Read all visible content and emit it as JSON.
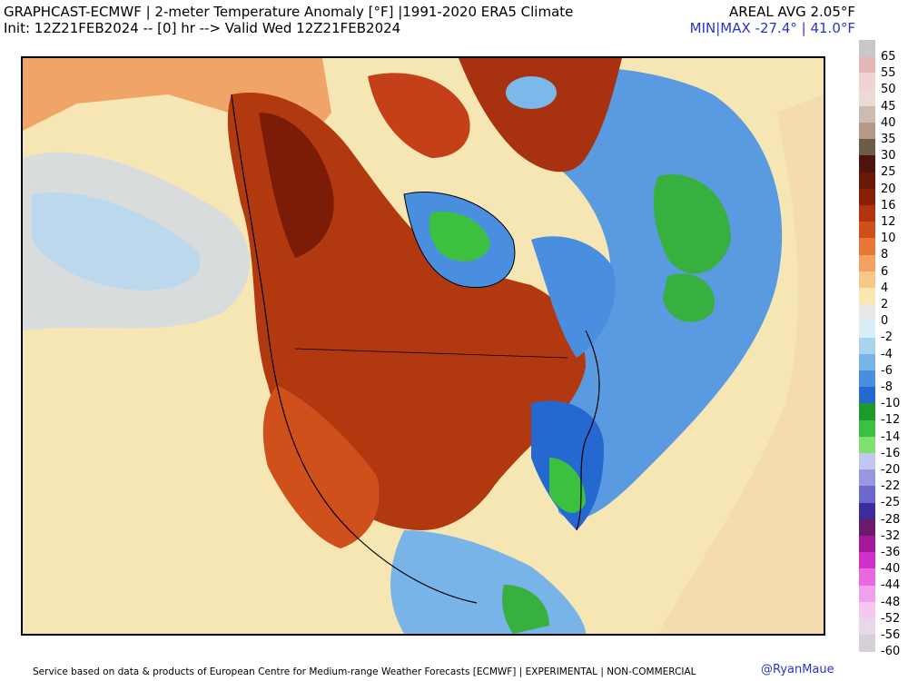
{
  "header": {
    "title_line1": "GRAPHCAST-ECMWF | 2-meter Temperature Anomaly [°F] |1991-2020 ERA5 Climate",
    "title_line2": "Init: 12Z21FEB2024 -- [0] hr --> Valid Wed 12Z21FEB2024",
    "areal_avg": "AREAL AVG 2.05°F",
    "min_max": "MIN|MAX -27.4° | 41.0°F"
  },
  "colorbar": {
    "entries": [
      {
        "label": "65",
        "color": "#c8c8c8"
      },
      {
        "label": "55",
        "color": "#e4b8b8"
      },
      {
        "label": "50",
        "color": "#f2d2d2"
      },
      {
        "label": "45",
        "color": "#eadcd4"
      },
      {
        "label": "40",
        "color": "#ccbcb0"
      },
      {
        "label": "35",
        "color": "#b49a88"
      },
      {
        "label": "30",
        "color": "#6e5c4a"
      },
      {
        "label": "25",
        "color": "#4e1410"
      },
      {
        "label": "20",
        "color": "#6a1808"
      },
      {
        "label": "16",
        "color": "#8a2008"
      },
      {
        "label": "12",
        "color": "#b03410"
      },
      {
        "label": "10",
        "color": "#d0501c"
      },
      {
        "label": "8",
        "color": "#e87838"
      },
      {
        "label": "6",
        "color": "#f4a060"
      },
      {
        "label": "4",
        "color": "#f8c888"
      },
      {
        "label": "2",
        "color": "#fae8b0"
      },
      {
        "label": "0",
        "color": "#e8e8e8"
      },
      {
        "label": "-2",
        "color": "#d8eef8"
      },
      {
        "label": "-4",
        "color": "#a8d4f0"
      },
      {
        "label": "-6",
        "color": "#78b4e8"
      },
      {
        "label": "-8",
        "color": "#4a8ee0"
      },
      {
        "label": "-10",
        "color": "#2468d0"
      },
      {
        "label": "-12",
        "color": "#1c9a2c"
      },
      {
        "label": "-14",
        "color": "#3cc040"
      },
      {
        "label": "-16",
        "color": "#80e070"
      },
      {
        "label": "-20",
        "color": "#c0c8f0"
      },
      {
        "label": "-22",
        "color": "#9898e0"
      },
      {
        "label": "-25",
        "color": "#6c68cc"
      },
      {
        "label": "-28",
        "color": "#3c2c9c"
      },
      {
        "label": "-32",
        "color": "#6c1a6c"
      },
      {
        "label": "-36",
        "color": "#a4189c"
      },
      {
        "label": "-40",
        "color": "#d030c8"
      },
      {
        "label": "-44",
        "color": "#e868e0"
      },
      {
        "label": "-48",
        "color": "#f0a0ec"
      },
      {
        "label": "-52",
        "color": "#f4c8f0"
      },
      {
        "label": "-56",
        "color": "#e8d8e8"
      },
      {
        "label": "-60",
        "color": "#d8d0d8"
      }
    ]
  },
  "footer": {
    "disclaimer": "Service based on data & products of European Centre for Medium-range Weather Forecasts [ECMWF] | EXPERIMENTAL | NON-COMMERCIAL",
    "credit": "@RyanMaue"
  }
}
